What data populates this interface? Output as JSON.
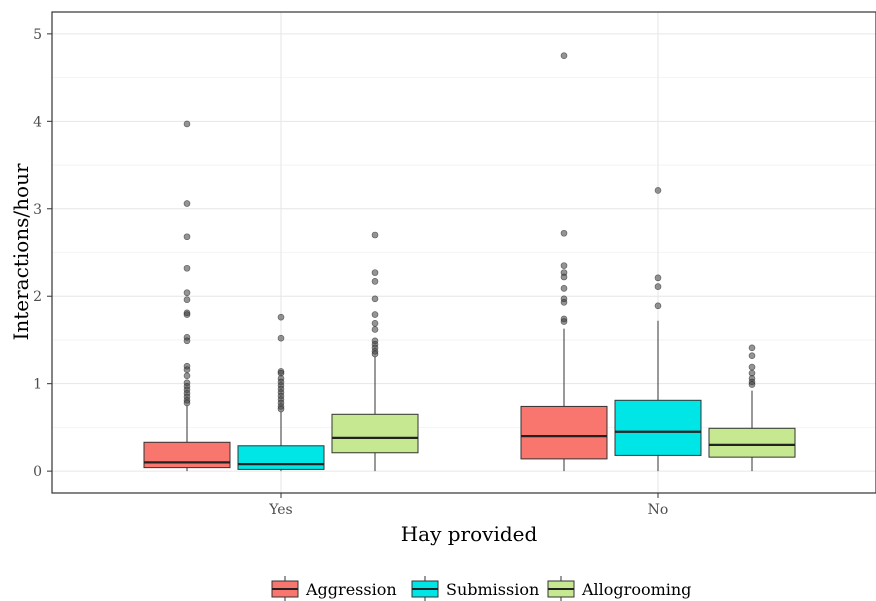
{
  "chart_data": {
    "type": "box",
    "xlabel": "Hay provided",
    "ylabel": "Interactions/hour",
    "ylim": [
      -0.25,
      5.25
    ],
    "yticks": [
      "0",
      "1",
      "2",
      "3",
      "4",
      "5"
    ],
    "categories": [
      "Yes",
      "No"
    ],
    "grid": true,
    "legend_position": "bottom",
    "series": [
      {
        "name": "Aggression",
        "color": "#F8766D",
        "boxes": [
          {
            "category": "Yes",
            "min": 0.0,
            "q1": 0.04,
            "median": 0.1,
            "q3": 0.33,
            "max": 0.75,
            "outliers": [
              3.97,
              3.06,
              2.68,
              2.32,
              2.04,
              1.96,
              1.81,
              1.79,
              1.53,
              1.49,
              1.2,
              1.16,
              1.09,
              1.01,
              0.97,
              0.93,
              0.89,
              0.85,
              0.81,
              0.78
            ]
          },
          {
            "category": "No",
            "min": 0.0,
            "q1": 0.14,
            "median": 0.4,
            "q3": 0.74,
            "max": 1.63,
            "outliers": [
              4.75,
              2.72,
              2.35,
              2.27,
              2.22,
              2.09,
              1.97,
              1.93,
              1.74,
              1.71
            ]
          }
        ]
      },
      {
        "name": "Submission",
        "color": "#00E5E5",
        "boxes": [
          {
            "category": "Yes",
            "min": 0.0,
            "q1": 0.02,
            "median": 0.08,
            "q3": 0.29,
            "max": 0.68,
            "outliers": [
              1.76,
              1.52,
              1.14,
              1.12,
              1.06,
              1.02,
              0.98,
              0.94,
              0.9,
              0.86,
              0.82,
              0.78,
              0.74,
              0.71
            ]
          },
          {
            "category": "No",
            "min": 0.0,
            "q1": 0.18,
            "median": 0.45,
            "q3": 0.81,
            "max": 1.72,
            "outliers": [
              3.21,
              2.21,
              2.11,
              1.89
            ]
          }
        ]
      },
      {
        "name": "Allogrooming",
        "color": "#C5E890",
        "boxes": [
          {
            "category": "Yes",
            "min": 0.0,
            "q1": 0.21,
            "median": 0.38,
            "q3": 0.65,
            "max": 1.31,
            "outliers": [
              2.7,
              2.27,
              2.17,
              1.97,
              1.79,
              1.69,
              1.62,
              1.49,
              1.45,
              1.41,
              1.37,
              1.34
            ]
          },
          {
            "category": "No",
            "min": 0.0,
            "q1": 0.16,
            "median": 0.3,
            "q3": 0.49,
            "max": 0.92,
            "outliers": [
              1.41,
              1.32,
              1.19,
              1.12,
              1.06,
              1.02,
              0.99
            ]
          }
        ]
      }
    ]
  }
}
